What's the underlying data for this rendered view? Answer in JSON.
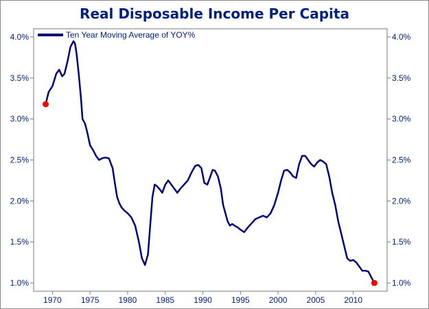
{
  "chart_data": {
    "type": "line",
    "title": "Real Disposable Income Per Capita",
    "xlabel": "",
    "ylabel": "",
    "xlim": [
      1967.5,
      2014.5
    ],
    "ylim": [
      0.9,
      4.1
    ],
    "x_ticks": [
      1970,
      1975,
      1980,
      1985,
      1990,
      1995,
      2000,
      2005,
      2010
    ],
    "x_tick_labels": [
      "1970",
      "1975",
      "1980",
      "1985",
      "1990",
      "1995",
      "2000",
      "2005",
      "2010"
    ],
    "y_ticks": [
      1.0,
      1.5,
      2.0,
      2.5,
      3.0,
      3.5,
      4.0
    ],
    "y_tick_labels": [
      "1.0%",
      "1.5%",
      "2.0%",
      "2.5%",
      "3.0%",
      "3.5%",
      "4.0%"
    ],
    "legend_position": "top-left",
    "grid": false,
    "series": [
      {
        "name": "Ten Year Moving Average of YOY%",
        "color": "#00007a",
        "x": [
          1969.1,
          1969.5,
          1970.0,
          1970.5,
          1970.9,
          1971.3,
          1971.6,
          1972.0,
          1972.4,
          1972.8,
          1973.0,
          1973.2,
          1973.5,
          1973.8,
          1974.0,
          1974.3,
          1974.6,
          1975.0,
          1975.4,
          1975.8,
          1976.2,
          1976.6,
          1977.0,
          1977.5,
          1978.0,
          1978.3,
          1978.6,
          1978.9,
          1979.2,
          1979.6,
          1980.0,
          1980.5,
          1981.0,
          1981.5,
          1981.9,
          1982.3,
          1982.7,
          1983.0,
          1983.3,
          1983.6,
          1983.9,
          1984.2,
          1984.6,
          1985.0,
          1985.4,
          1985.8,
          1986.2,
          1986.6,
          1987.0,
          1987.5,
          1988.0,
          1988.5,
          1989.0,
          1989.4,
          1989.8,
          1990.2,
          1990.6,
          1991.0,
          1991.3,
          1991.6,
          1992.0,
          1992.4,
          1992.7,
          1993.0,
          1993.3,
          1993.6,
          1993.9,
          1994.2,
          1994.6,
          1995.0,
          1995.5,
          1996.0,
          1996.5,
          1997.0,
          1997.5,
          1998.0,
          1998.5,
          1999.0,
          1999.5,
          2000.0,
          2000.4,
          2000.8,
          2001.2,
          2001.6,
          2002.0,
          2002.4,
          2002.8,
          2003.2,
          2003.6,
          2004.0,
          2004.4,
          2004.8,
          2005.2,
          2005.6,
          2006.0,
          2006.4,
          2006.8,
          2007.2,
          2007.6,
          2008.0,
          2008.4,
          2008.8,
          2009.2,
          2009.6,
          2010.0,
          2010.4,
          2010.8,
          2011.2,
          2011.6,
          2012.0,
          2012.4,
          2012.8
        ],
        "y": [
          3.18,
          3.33,
          3.4,
          3.55,
          3.6,
          3.52,
          3.55,
          3.7,
          3.88,
          3.95,
          3.92,
          3.8,
          3.55,
          3.25,
          3.0,
          2.95,
          2.85,
          2.68,
          2.62,
          2.55,
          2.5,
          2.52,
          2.53,
          2.52,
          2.4,
          2.22,
          2.05,
          1.97,
          1.92,
          1.88,
          1.85,
          1.8,
          1.7,
          1.5,
          1.3,
          1.22,
          1.35,
          1.7,
          2.05,
          2.2,
          2.18,
          2.15,
          2.1,
          2.2,
          2.25,
          2.2,
          2.15,
          2.1,
          2.15,
          2.2,
          2.25,
          2.35,
          2.43,
          2.44,
          2.4,
          2.22,
          2.2,
          2.3,
          2.38,
          2.37,
          2.3,
          2.15,
          1.95,
          1.85,
          1.75,
          1.7,
          1.72,
          1.7,
          1.68,
          1.65,
          1.62,
          1.68,
          1.73,
          1.78,
          1.8,
          1.82,
          1.8,
          1.85,
          1.95,
          2.1,
          2.25,
          2.37,
          2.38,
          2.35,
          2.3,
          2.28,
          2.45,
          2.55,
          2.55,
          2.5,
          2.45,
          2.42,
          2.47,
          2.5,
          2.48,
          2.45,
          2.3,
          2.1,
          1.95,
          1.75,
          1.6,
          1.45,
          1.3,
          1.27,
          1.28,
          1.25,
          1.2,
          1.15,
          1.15,
          1.14,
          1.07,
          1.0
        ]
      }
    ],
    "markers": [
      {
        "x": 1969.1,
        "y": 3.18,
        "color": "#ff0000"
      },
      {
        "x": 2012.8,
        "y": 1.0,
        "color": "#ff0000"
      }
    ]
  }
}
